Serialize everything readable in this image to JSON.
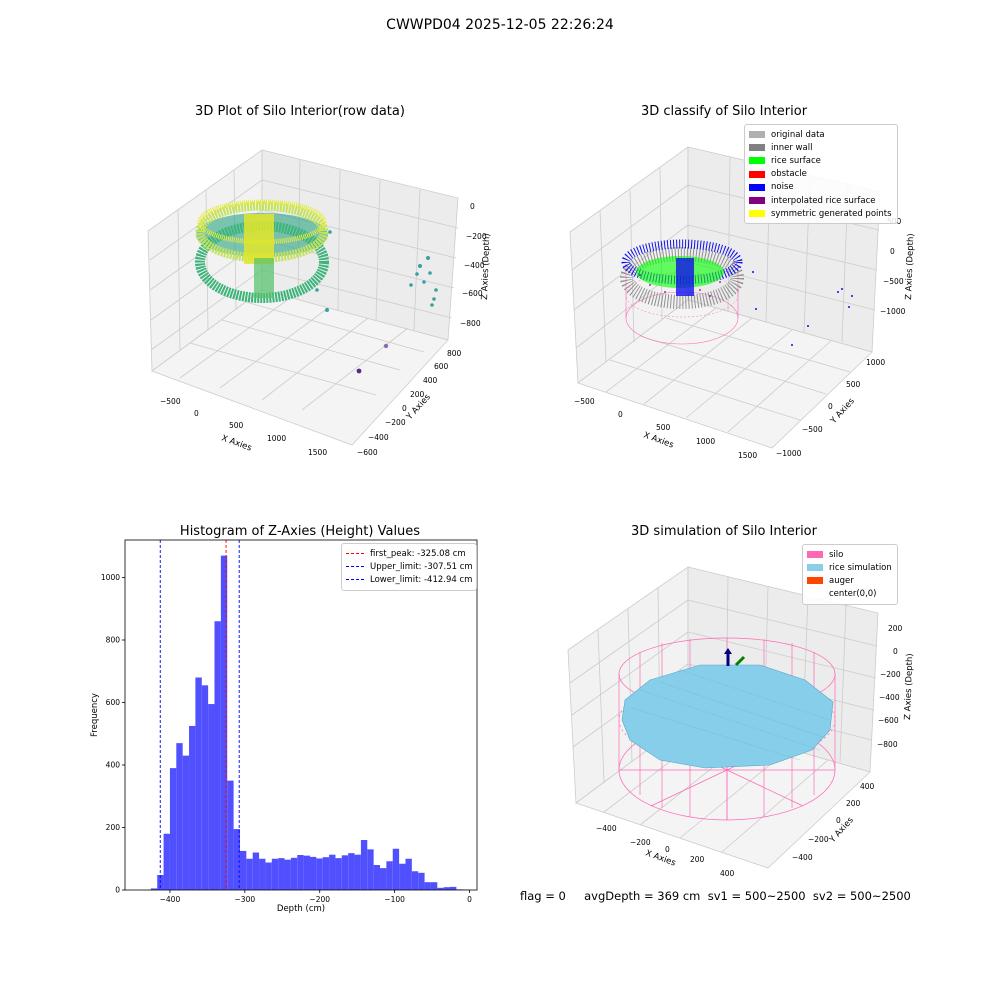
{
  "suptitle": "CWWPD04 2025-12-05 22:26:24",
  "panel1": {
    "title": "3D Plot of Silo Interior(row data)",
    "xlabel": "X Axies",
    "ylabel": "Y Axies",
    "zlabel": "Z Axies (Depth)",
    "xticks": [
      "−500",
      "0",
      "500",
      "1000",
      "1500"
    ],
    "yticks": [
      "−600",
      "−400",
      "−200",
      "0",
      "200",
      "400",
      "600",
      "800"
    ],
    "zticks": [
      "0",
      "−200",
      "−400",
      "−600",
      "−800"
    ]
  },
  "panel2": {
    "title": "3D classify of Silo Interior",
    "xlabel": "X Axies",
    "ylabel": "Y Axies",
    "zlabel": "Z Axies (Depth)",
    "xticks": [
      "−500",
      "0",
      "500",
      "1000",
      "1500"
    ],
    "yticks": [
      "−1000",
      "−500",
      "0",
      "500",
      "1000"
    ],
    "zticks": [
      "500",
      "0",
      "−500",
      "−1000"
    ],
    "legend": [
      {
        "label": "original data",
        "color": "#b0b0b0"
      },
      {
        "label": "inner wall",
        "color": "#808080"
      },
      {
        "label": "rice surface",
        "color": "#00ff00"
      },
      {
        "label": "obstacle",
        "color": "#ff0000"
      },
      {
        "label": "noise",
        "color": "#0000ff"
      },
      {
        "label": "interpolated rice surface",
        "color": "#800080"
      },
      {
        "label": "symmetric generated points",
        "color": "#ffff00"
      }
    ]
  },
  "panel3": {
    "title": "Histogram of Z-Axies (Height) Values",
    "xlabel": "Depth (cm)",
    "ylabel": "Frequency",
    "legend": [
      {
        "label": "first_peak: -325.08 cm",
        "color": "#ff0000"
      },
      {
        "label": "Upper_limit: -307.51 cm",
        "color": "#0000ff"
      },
      {
        "label": "Lower_limit: -412.94 cm",
        "color": "#0000ff"
      }
    ]
  },
  "panel4": {
    "title": "3D simulation of Silo Interior",
    "xlabel": "X Axies",
    "ylabel": "Y Axies",
    "zlabel": "Z Axies (Depth)",
    "xticks": [
      "−400",
      "−200",
      "0",
      "200",
      "400"
    ],
    "yticks": [
      "−400",
      "−200",
      "0",
      "200",
      "400"
    ],
    "zticks": [
      "200",
      "0",
      "−200",
      "−400",
      "−600",
      "−800"
    ],
    "legend": [
      {
        "label": "silo",
        "color": "#ff69b4"
      },
      {
        "label": "rice simulation",
        "color": "#87ceeb"
      },
      {
        "label": "auger",
        "color": "#ff4500"
      },
      {
        "label": "center(0,0)",
        "color": "#ffffff"
      }
    ]
  },
  "footer": {
    "text": "flag = 0     avgDepth = 369 cm  sv1 = 500~2500  sv2 = 500~2500"
  },
  "chart_data": {
    "type": "bar",
    "title": "Histogram of Z-Axies (Height) Values",
    "xlabel": "Depth (cm)",
    "ylabel": "Frequency",
    "xlim": [
      -460,
      10
    ],
    "ylim": [
      0,
      1120
    ],
    "xticks": [
      -400,
      -300,
      -200,
      -100,
      0
    ],
    "yticks": [
      0,
      200,
      400,
      600,
      800,
      1000
    ],
    "bar_color": "#5050ff",
    "bin_width": 8.5,
    "bin_starts": [
      -425.5,
      -417,
      -408.5,
      -400,
      -391.5,
      -383,
      -374.5,
      -366,
      -357.5,
      -349,
      -340.5,
      -332,
      -323.5,
      -315,
      -306.5,
      -298,
      -289.5,
      -281,
      -272.5,
      -264,
      -255.5,
      -247,
      -238.5,
      -230,
      -221.5,
      -213,
      -204.5,
      -196,
      -187.5,
      -179,
      -170.5,
      -162,
      -153.5,
      -145,
      -136.5,
      -128,
      -119.5,
      -111,
      -102.5,
      -94,
      -85.5,
      -77,
      -68.5,
      -60,
      -51.5,
      -43,
      -34.5,
      -26,
      -17.5,
      -9,
      -0.5
    ],
    "values": [
      5,
      48,
      180,
      390,
      470,
      430,
      525,
      680,
      655,
      595,
      860,
      1070,
      350,
      195,
      125,
      100,
      120,
      100,
      88,
      100,
      102,
      97,
      103,
      112,
      110,
      106,
      101,
      105,
      113,
      102,
      111,
      118,
      113,
      160,
      130,
      80,
      70,
      92,
      132,
      84,
      100,
      60,
      55,
      25,
      25,
      7,
      9,
      10,
      2,
      1,
      0
    ],
    "vlines": [
      {
        "x": -325.08,
        "color": "#ff0000",
        "label": "first_peak: -325.08 cm"
      },
      {
        "x": -307.51,
        "color": "#0000ff",
        "label": "Upper_limit: -307.51 cm"
      },
      {
        "x": -412.94,
        "color": "#0000ff",
        "label": "Lower_limit: -412.94 cm"
      }
    ],
    "legend_position": "top-right",
    "grid": false
  }
}
